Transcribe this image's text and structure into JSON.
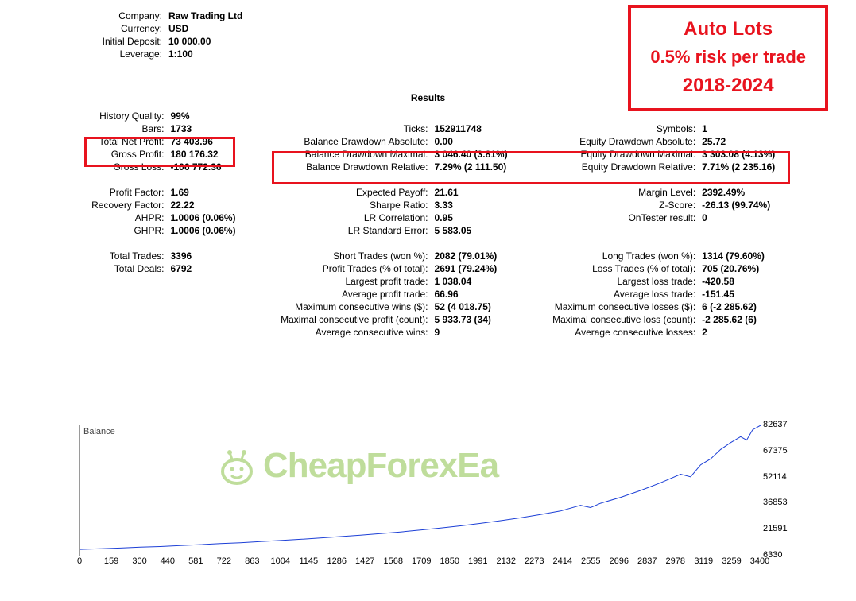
{
  "callout": {
    "line1": "Auto Lots",
    "line2": "0.5% risk per trade",
    "line3": "2018-2024",
    "border_color": "#e8131e",
    "text_color": "#e8131e"
  },
  "account": {
    "company_label": "Company:",
    "company": "Raw Trading Ltd",
    "currency_label": "Currency:",
    "currency": "USD",
    "initial_deposit_label": "Initial Deposit:",
    "initial_deposit": "10 000.00",
    "leverage_label": "Leverage:",
    "leverage": "1:100"
  },
  "results_title": "Results",
  "col1": {
    "history_quality_l": "History Quality:",
    "history_quality": "99%",
    "bars_l": "Bars:",
    "bars": "1733",
    "total_net_profit_l": "Total Net Profit:",
    "total_net_profit": "73 403.96",
    "gross_profit_l": "Gross Profit:",
    "gross_profit": "180 176.32",
    "gross_loss_l": "Gross Loss:",
    "gross_loss": "-106 772.36",
    "profit_factor_l": "Profit Factor:",
    "profit_factor": "1.69",
    "recovery_factor_l": "Recovery Factor:",
    "recovery_factor": "22.22",
    "ahpr_l": "AHPR:",
    "ahpr": "1.0006 (0.06%)",
    "ghpr_l": "GHPR:",
    "ghpr": "1.0006 (0.06%)",
    "total_trades_l": "Total Trades:",
    "total_trades": "3396",
    "total_deals_l": "Total Deals:",
    "total_deals": "6792"
  },
  "col2": {
    "ticks_l": "Ticks:",
    "ticks": "152911748",
    "bal_dd_abs_l": "Balance Drawdown Absolute:",
    "bal_dd_abs": "0.00",
    "bal_dd_max_l": "Balance Drawdown Maximal:",
    "bal_dd_max": "3 046.40 (3.81%)",
    "bal_dd_rel_l": "Balance Drawdown Relative:",
    "bal_dd_rel": "7.29% (2 111.50)",
    "expected_payoff_l": "Expected Payoff:",
    "expected_payoff": "21.61",
    "sharpe_l": "Sharpe Ratio:",
    "sharpe": "3.33",
    "lr_corr_l": "LR Correlation:",
    "lr_corr": "0.95",
    "lr_stderr_l": "LR Standard Error:",
    "lr_stderr": "5 583.05",
    "short_trades_l": "Short Trades (won %):",
    "short_trades": "2082 (79.01%)",
    "profit_trades_l": "Profit Trades (% of total):",
    "profit_trades": "2691 (79.24%)",
    "largest_profit_l": "Largest profit trade:",
    "largest_profit": "1 038.04",
    "avg_profit_l": "Average profit trade:",
    "avg_profit": "66.96",
    "max_cons_wins_l": "Maximum consecutive wins ($):",
    "max_cons_wins": "52 (4 018.75)",
    "max_cons_profit_l": "Maximal consecutive profit (count):",
    "max_cons_profit": "5 933.73 (34)",
    "avg_cons_wins_l": "Average consecutive wins:",
    "avg_cons_wins": "9"
  },
  "col3": {
    "symbols_l": "Symbols:",
    "symbols": "1",
    "eq_dd_abs_l": "Equity Drawdown Absolute:",
    "eq_dd_abs": "25.72",
    "eq_dd_max_l": "Equity Drawdown Maximal:",
    "eq_dd_max": "3 303.08 (4.13%)",
    "eq_dd_rel_l": "Equity Drawdown Relative:",
    "eq_dd_rel": "7.71% (2 235.16)",
    "margin_level_l": "Margin Level:",
    "margin_level": "2392.49%",
    "zscore_l": "Z-Score:",
    "zscore": "-26.13 (99.74%)",
    "ontester_l": "OnTester result:",
    "ontester": "0",
    "long_trades_l": "Long Trades (won %):",
    "long_trades": "1314 (79.60%)",
    "loss_trades_l": "Loss Trades (% of total):",
    "loss_trades": "705 (20.76%)",
    "largest_loss_l": "Largest loss trade:",
    "largest_loss": "-420.58",
    "avg_loss_l": "Average loss trade:",
    "avg_loss": "-151.45",
    "max_cons_losses_l": "Maximum consecutive losses ($):",
    "max_cons_losses": "6 (-2 285.62)",
    "max_cons_loss_l": "Maximal consecutive loss (count):",
    "max_cons_loss": "-2 285.62 (6)",
    "avg_cons_losses_l": "Average consecutive losses:",
    "avg_cons_losses": "2"
  },
  "chart": {
    "type": "line",
    "title": "Balance",
    "x_min": 0,
    "x_max": 3400,
    "y_min": 6330,
    "y_max": 82637,
    "y_ticks": [
      6330,
      21591,
      36853,
      52114,
      67375,
      82637
    ],
    "x_ticks": [
      0,
      159,
      300,
      440,
      581,
      722,
      863,
      1004,
      1145,
      1286,
      1427,
      1568,
      1709,
      1850,
      1991,
      2132,
      2273,
      2414,
      2555,
      2696,
      2837,
      2978,
      3119,
      3259,
      3400
    ],
    "line_color": "#1c3fd6",
    "line_width": 1,
    "border_color": "#9a9a9a",
    "background_color": "#ffffff",
    "watermark_text": "CheapForexEa",
    "watermark_color": "#8bc34a",
    "data": [
      [
        0,
        10000
      ],
      [
        100,
        10400
      ],
      [
        200,
        10800
      ],
      [
        300,
        11300
      ],
      [
        400,
        11700
      ],
      [
        500,
        12300
      ],
      [
        600,
        12800
      ],
      [
        700,
        13400
      ],
      [
        800,
        13900
      ],
      [
        900,
        14600
      ],
      [
        1000,
        15200
      ],
      [
        1100,
        15900
      ],
      [
        1200,
        16700
      ],
      [
        1300,
        17500
      ],
      [
        1400,
        18300
      ],
      [
        1500,
        19200
      ],
      [
        1600,
        20200
      ],
      [
        1700,
        21300
      ],
      [
        1800,
        22500
      ],
      [
        1900,
        23800
      ],
      [
        2000,
        25200
      ],
      [
        2100,
        26800
      ],
      [
        2200,
        28500
      ],
      [
        2300,
        30400
      ],
      [
        2400,
        32500
      ],
      [
        2500,
        35800
      ],
      [
        2550,
        34500
      ],
      [
        2600,
        37000
      ],
      [
        2700,
        40500
      ],
      [
        2800,
        44500
      ],
      [
        2900,
        49000
      ],
      [
        3000,
        54000
      ],
      [
        3050,
        52500
      ],
      [
        3100,
        59500
      ],
      [
        3150,
        63000
      ],
      [
        3200,
        68500
      ],
      [
        3250,
        72500
      ],
      [
        3300,
        76000
      ],
      [
        3330,
        74000
      ],
      [
        3360,
        80000
      ],
      [
        3400,
        82637
      ]
    ]
  },
  "highlight_boxes": {
    "profit_box_title": "net/gross profit",
    "dd_box_title": "drawdown block"
  }
}
